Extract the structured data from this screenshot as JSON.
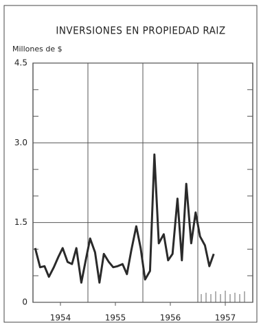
{
  "chart_data": {
    "type": "line",
    "title": "INVERSIONES EN PROPIEDAD RAIZ",
    "y_label": "Millones de $",
    "x": [
      1954.04,
      1954.13,
      1954.21,
      1954.29,
      1954.38,
      1954.46,
      1954.54,
      1954.63,
      1954.71,
      1954.79,
      1954.88,
      1954.96,
      1955.04,
      1955.13,
      1955.21,
      1955.29,
      1955.38,
      1955.46,
      1955.54,
      1955.63,
      1955.71,
      1955.79,
      1955.88,
      1955.96,
      1956.04,
      1956.13,
      1956.21,
      1956.29,
      1956.38,
      1956.46,
      1956.54,
      1956.63,
      1956.71,
      1956.79,
      1956.88,
      1956.96,
      1957.04,
      1957.13,
      1957.21,
      1957.29
    ],
    "series": [
      {
        "name": "Inversiones",
        "color": "#2a2a2a",
        "values": [
          1.02,
          0.66,
          0.68,
          0.48,
          0.66,
          0.85,
          1.02,
          0.76,
          0.72,
          1.02,
          0.37,
          0.79,
          1.2,
          0.94,
          0.37,
          0.91,
          0.76,
          0.66,
          0.68,
          0.72,
          0.53,
          0.98,
          1.43,
          1.02,
          0.43,
          0.59,
          2.78,
          1.11,
          1.28,
          0.79,
          0.91,
          1.95,
          0.79,
          2.23,
          1.11,
          1.69,
          1.24,
          1.07,
          0.68,
          0.91
        ]
      }
    ],
    "xlim": [
      1954,
      1958
    ],
    "xticks": [
      {
        "value": 1954.5,
        "label": "1954"
      },
      {
        "value": 1955.5,
        "label": "1955"
      },
      {
        "value": 1956.5,
        "label": "1956"
      },
      {
        "value": 1957.5,
        "label": "1957"
      }
    ],
    "ylim": [
      0,
      4.5
    ],
    "yticks": [
      0,
      1.5,
      {
        "value": 3,
        "label": "3.0"
      },
      4.5
    ],
    "yminorticks": [
      0.5,
      1,
      2,
      2.5,
      3.5,
      4
    ],
    "grid": true
  }
}
